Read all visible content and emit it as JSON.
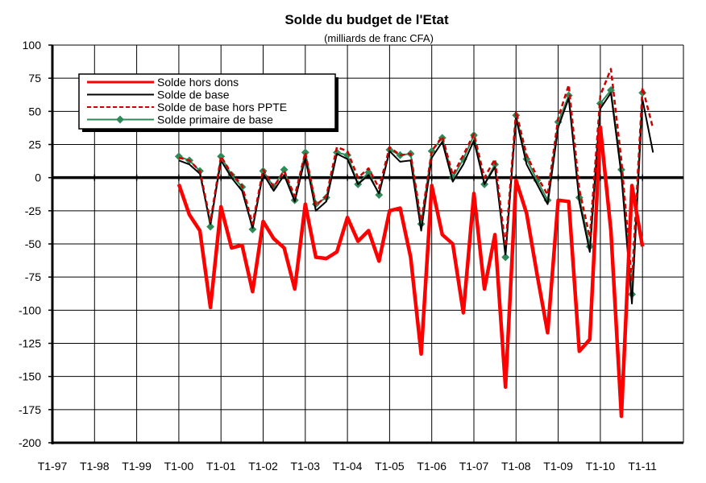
{
  "chart_data": {
    "type": "line",
    "title": "Solde du budget de l'Etat",
    "subtitle": "(milliards de franc CFA)",
    "xlabel": "",
    "ylabel": "",
    "ylim": [
      -200,
      100
    ],
    "yticks": [
      100,
      75,
      50,
      25,
      0,
      -25,
      -50,
      -75,
      -100,
      -125,
      -150,
      -175,
      -200
    ],
    "grid": true,
    "legend_position": "top-left",
    "x_tick_labels": [
      "T1-97",
      "T1-98",
      "T1-99",
      "T1-00",
      "T1-01",
      "T1-02",
      "T1-03",
      "T1-04",
      "T1-05",
      "T1-06",
      "T1-07",
      "T1-08",
      "T1-09",
      "T1-10",
      "T1-11"
    ],
    "x_start_index": 12,
    "series": [
      {
        "name": "Solde hors dons",
        "color": "#ff0000",
        "style": "solid-thick",
        "values": [
          -5,
          -28,
          -40,
          -98,
          -22,
          -53,
          -51,
          -86,
          -33,
          -46,
          -53,
          -84,
          -20,
          -60,
          -61,
          -56,
          -30,
          -48,
          -40,
          -63,
          -25,
          -23,
          -60,
          -133,
          -6,
          -43,
          -50,
          -102,
          -12,
          -84,
          -43,
          -158,
          -2,
          -27,
          -73,
          -117,
          -17,
          -18,
          -131,
          -122,
          38,
          -40,
          -180,
          -6,
          -52
        ]
      },
      {
        "name": "Solde de base",
        "color": "#000000",
        "style": "solid",
        "values": [
          13,
          10,
          3,
          -35,
          13,
          0,
          -10,
          -38,
          3,
          -10,
          2,
          -18,
          15,
          -25,
          -18,
          18,
          14,
          -5,
          2,
          -12,
          20,
          12,
          13,
          -40,
          15,
          27,
          -3,
          10,
          28,
          -5,
          8,
          -58,
          45,
          10,
          -5,
          -20,
          38,
          60,
          -18,
          -56,
          52,
          64,
          2,
          -95,
          59,
          19
        ]
      },
      {
        "name": "Solde de base hors PPTE",
        "color": "#cc0000",
        "style": "dashed",
        "values": [
          15,
          13,
          5,
          -33,
          16,
          3,
          -6,
          -35,
          6,
          -7,
          5,
          -14,
          19,
          -21,
          -14,
          23,
          20,
          0,
          7,
          -8,
          23,
          17,
          18,
          -33,
          20,
          31,
          2,
          17,
          33,
          0,
          14,
          -52,
          50,
          17,
          1,
          -13,
          45,
          70,
          -9,
          -45,
          62,
          82,
          13,
          -78,
          68,
          37
        ]
      },
      {
        "name": "Solde primaire de base",
        "color": "#2e8b57",
        "style": "solid-markers",
        "values": [
          16,
          13,
          5,
          -37,
          16,
          2,
          -7,
          -39,
          5,
          -7,
          6,
          -17,
          19,
          -20,
          -15,
          19,
          17,
          -5,
          4,
          -13,
          21,
          17,
          18,
          -35,
          20,
          30,
          0,
          14,
          32,
          -5,
          10,
          -60,
          47,
          14,
          -2,
          -17,
          42,
          62,
          -15,
          -52,
          56,
          66,
          6,
          -88,
          64
        ]
      }
    ]
  }
}
